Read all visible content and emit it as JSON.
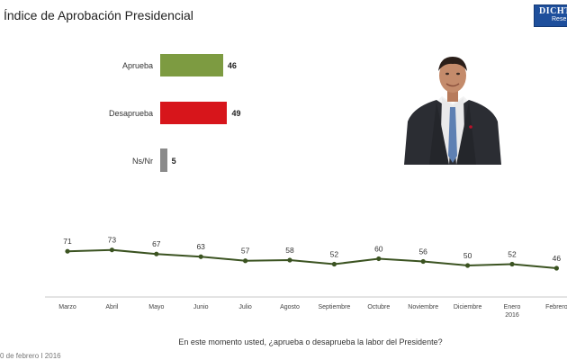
{
  "title": "Índice de Aprobación Presidencial",
  "logo": {
    "line1": "DICHT",
    "line2": "Rese"
  },
  "colors": {
    "aprueba": "#7d9b41",
    "desaprueba": "#d7151b",
    "nsnr": "#8a8a8a",
    "trend": "#3b5321"
  },
  "chart_data": [
    {
      "type": "bar",
      "categories": [
        "Aprueba",
        "Desaprueba",
        "Ns/Nr"
      ],
      "values": [
        46,
        49,
        5
      ]
    },
    {
      "type": "line",
      "categories": [
        "Marzo",
        "Abril",
        "Mayo",
        "Junio",
        "Julio",
        "Agosto",
        "Septiembre",
        "Octubre",
        "Noviembre",
        "Diciembre",
        "Enero\n2016",
        "Febrero"
      ],
      "values": [
        71,
        73,
        67,
        63,
        57,
        58,
        52,
        60,
        56,
        50,
        52,
        46
      ]
    }
  ],
  "question": "En este momento usted, ¿aprueba o desaprueba la labor del Presidente?",
  "footer": "0 de febrero  I  2016"
}
